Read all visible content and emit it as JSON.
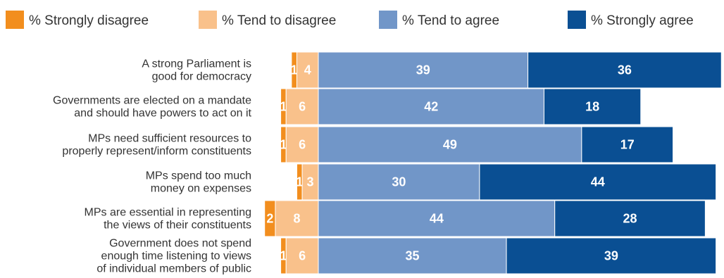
{
  "chart_data": {
    "type": "bar",
    "orientation": "horizontal",
    "stacked": "diverging",
    "legend_position": "top",
    "grid": false,
    "legend": [
      {
        "name": "% Strongly disagree",
        "color": "#f28e1e"
      },
      {
        "name": "% Tend to disagree",
        "color": "#f9c18b"
      },
      {
        "name": "% Tend to agree",
        "color": "#7196c8"
      },
      {
        "name": "% Strongly agree",
        "color": "#0a4f93"
      }
    ],
    "categories": [
      [
        "A strong Parliament is",
        "good for democracy"
      ],
      [
        "Governments are elected on a mandate",
        "and should have powers to act on it"
      ],
      [
        "MPs need sufficient resources to",
        "properly represent/inform constituents"
      ],
      [
        "MPs spend too much",
        "money on expenses"
      ],
      [
        "MPs are essential in representing",
        "the views of their constituents"
      ],
      [
        "Government does not spend",
        "enough time listening to views",
        "of individual members of public"
      ]
    ],
    "series": [
      {
        "name": "% Strongly disagree",
        "values": [
          1,
          1,
          1,
          1,
          2,
          1
        ]
      },
      {
        "name": "% Tend to disagree",
        "values": [
          4,
          6,
          6,
          3,
          8,
          6
        ]
      },
      {
        "name": "% Tend to agree",
        "values": [
          39,
          42,
          49,
          30,
          44,
          35
        ]
      },
      {
        "name": "% Strongly agree",
        "values": [
          36,
          18,
          17,
          44,
          28,
          39
        ]
      }
    ]
  }
}
